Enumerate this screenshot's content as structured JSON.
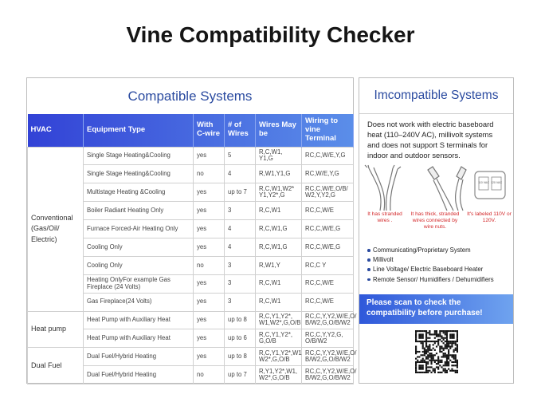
{
  "title": "Vine Compatibility Checker",
  "compatible": {
    "title": "Compatible Systems",
    "headers": [
      "HVAC",
      "Equipment Type",
      "With C-wire",
      "# of Wires",
      "Wires May be",
      "Wiring to vine Terminal"
    ],
    "groups": [
      {
        "name": "Conventional (Gas/Oil/ Electric)",
        "rows": [
          [
            "Single Stage Heating&Cooling",
            "yes",
            "5",
            "R,C,W1, Y1,G",
            "RC,C,W/E,Y,G"
          ],
          [
            "Single Stage Heating&Cooling",
            "no",
            "4",
            "R,W1,Y1,G",
            "RC,W/E,Y,G"
          ],
          [
            "Multistage Heating &Cooling",
            "yes",
            "up to 7",
            "R,C,W1,W2* Y1,Y2*,G",
            "RC,C,W/E,O/B/ W2,Y,Y2,G"
          ],
          [
            "Boiler Radiant Heating Only",
            "yes",
            "3",
            "R,C,W1",
            "RC,C,W/E"
          ],
          [
            "Furnace Forced-Air Heating Only",
            "yes",
            "4",
            "R,C,W1,G",
            "RC,C,W/E,G"
          ],
          [
            "Cooling Only",
            "yes",
            "4",
            "R,C,W1,G",
            "RC,C,W/E,G"
          ],
          [
            "Cooling Only",
            "no",
            "3",
            "R,W1,Y",
            "RC,C Y"
          ],
          [
            "Heating OnlyFor example Gas Fireplace (24 Volts)",
            "yes",
            "3",
            "R,C,W1",
            "RC,C,W/E"
          ],
          [
            "Gas Fireplace(24 Volts)",
            "yes",
            "3",
            "R,C,W1",
            "RC,C,W/E"
          ]
        ]
      },
      {
        "name": "Heat pump",
        "rows": [
          [
            "Heat Pump with Auxiliary Heat",
            "yes",
            "up to 8",
            "R,C,Y1,Y2*, W1,W2*,G,O/B",
            "RC,C,Y,Y2,W/E,O/ B/W2,G,O/B/W2"
          ],
          [
            "Heat Pump with Auxiliary Heat",
            "yes",
            "up to 6",
            "R,C,Y1,Y2*, G,O/B",
            "RC,C,Y,Y2,G, O/B/W2"
          ]
        ]
      },
      {
        "name": "Dual Fuel",
        "rows": [
          [
            "Dual Fuel/Hybrid Heating",
            "yes",
            "up to 8",
            "R,C,Y1,Y2*,W1 W2*,G,O/B",
            "RC,C,Y,Y2,W/E,O/ B/W2,G,O/B/W2"
          ],
          [
            "Dual Fuel/Hybrid Heating",
            "no",
            "up to 7",
            "R,Y1,Y2*,W1, W2*,G,O/B",
            "RC,C,Y,Y2,W/E,O/ B/W2,G,O/B/W2"
          ]
        ]
      }
    ]
  },
  "incompatible": {
    "title": "Imcompatible Systems",
    "description": "Does not work with electric baseboard heat (110–240V AC), millivolt systems and does not support S terminals for indoor and outdoor sensors.",
    "thermostat_labels": [
      "110 VAC",
      "120 VAC"
    ],
    "captions": [
      "It has stranded wires .",
      "It has thick, stranded wires connected by wire nuts.",
      "It's labeled 110V or 120V."
    ],
    "items": [
      "Communicating/Proprietary System",
      "Millivolt",
      "Line Voltage/ Electric Baseboard Heater",
      "Remote Sensor/ Humidifiers / Dehumidifiers"
    ],
    "call_to_action": "Please scan to check the compatibility before purchase!"
  }
}
